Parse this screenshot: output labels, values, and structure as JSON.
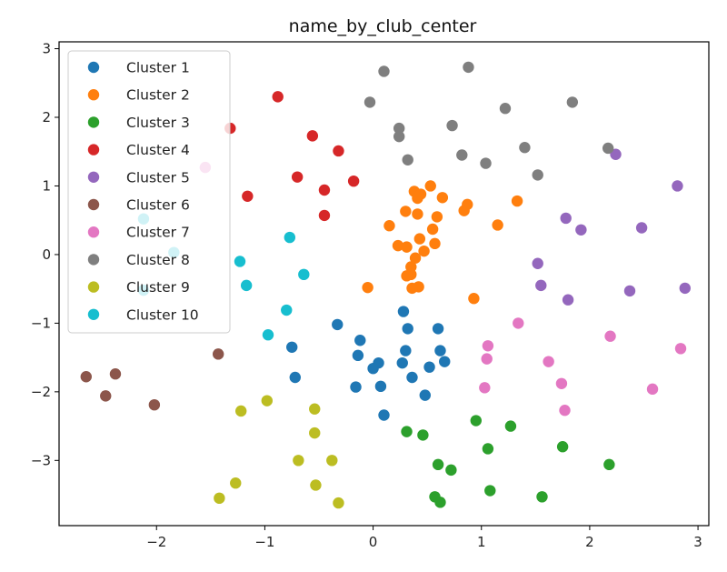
{
  "chart_data": {
    "type": "scatter",
    "title": "name_by_club_center",
    "xlabel": "",
    "ylabel": "",
    "xlim": [
      -2.9,
      3.1
    ],
    "ylim": [
      -3.95,
      3.1
    ],
    "xticks": [
      -2,
      -1,
      0,
      1,
      2,
      3
    ],
    "xtick_labels": [
      "−2",
      "−1",
      "0",
      "1",
      "2",
      "3"
    ],
    "yticks": [
      -3,
      -2,
      -1,
      0,
      1,
      2,
      3
    ],
    "ytick_labels": [
      "−3",
      "−2",
      "−1",
      "0",
      "1",
      "2",
      "3"
    ],
    "grid": false,
    "legend_position": "upper-left",
    "series": [
      {
        "name": "Cluster 1",
        "color": "#1f77b4",
        "points": [
          [
            -0.33,
            -1.02
          ],
          [
            0.28,
            -0.83
          ],
          [
            -0.75,
            -1.35
          ],
          [
            -0.12,
            -1.25
          ],
          [
            0.32,
            -1.08
          ],
          [
            0.6,
            -1.08
          ],
          [
            0.62,
            -1.4
          ],
          [
            0.3,
            -1.4
          ],
          [
            -0.14,
            -1.47
          ],
          [
            0.05,
            -1.58
          ],
          [
            0.27,
            -1.58
          ],
          [
            0.66,
            -1.56
          ],
          [
            -0.72,
            -1.79
          ],
          [
            0.36,
            -1.79
          ],
          [
            0.0,
            -1.66
          ],
          [
            0.52,
            -1.64
          ],
          [
            -0.16,
            -1.93
          ],
          [
            0.07,
            -1.92
          ],
          [
            0.48,
            -2.05
          ],
          [
            0.1,
            -2.34
          ]
        ]
      },
      {
        "name": "Cluster 2",
        "color": "#ff7f0e",
        "points": [
          [
            0.53,
            1.0
          ],
          [
            0.38,
            0.92
          ],
          [
            0.44,
            0.88
          ],
          [
            0.41,
            0.82
          ],
          [
            0.64,
            0.83
          ],
          [
            0.87,
            0.73
          ],
          [
            1.33,
            0.78
          ],
          [
            0.84,
            0.64
          ],
          [
            0.3,
            0.63
          ],
          [
            0.41,
            0.59
          ],
          [
            0.59,
            0.55
          ],
          [
            0.15,
            0.42
          ],
          [
            1.15,
            0.43
          ],
          [
            0.55,
            0.37
          ],
          [
            0.43,
            0.23
          ],
          [
            0.57,
            0.16
          ],
          [
            0.23,
            0.13
          ],
          [
            0.31,
            0.11
          ],
          [
            0.47,
            0.05
          ],
          [
            0.39,
            -0.05
          ],
          [
            0.35,
            -0.18
          ],
          [
            0.35,
            -0.29
          ],
          [
            0.31,
            -0.31
          ],
          [
            0.42,
            -0.47
          ],
          [
            0.36,
            -0.49
          ],
          [
            -0.05,
            -0.48
          ],
          [
            0.93,
            -0.64
          ]
        ]
      },
      {
        "name": "Cluster 3",
        "color": "#2ca02c",
        "points": [
          [
            0.31,
            -2.58
          ],
          [
            0.46,
            -2.63
          ],
          [
            0.95,
            -2.42
          ],
          [
            1.27,
            -2.5
          ],
          [
            1.06,
            -2.83
          ],
          [
            1.75,
            -2.8
          ],
          [
            0.6,
            -3.06
          ],
          [
            0.72,
            -3.14
          ],
          [
            2.18,
            -3.06
          ],
          [
            0.57,
            -3.53
          ],
          [
            0.62,
            -3.61
          ],
          [
            1.08,
            -3.44
          ],
          [
            1.56,
            -3.53
          ]
        ]
      },
      {
        "name": "Cluster 4",
        "color": "#d62728",
        "points": [
          [
            -0.88,
            2.3
          ],
          [
            -1.32,
            1.84
          ],
          [
            -0.56,
            1.73
          ],
          [
            -0.32,
            1.51
          ],
          [
            -0.7,
            1.13
          ],
          [
            -0.18,
            1.07
          ],
          [
            -0.45,
            0.94
          ],
          [
            -1.16,
            0.85
          ],
          [
            -0.45,
            0.57
          ]
        ]
      },
      {
        "name": "Cluster 5",
        "color": "#9467bd",
        "points": [
          [
            2.24,
            1.46
          ],
          [
            2.81,
            1.0
          ],
          [
            1.78,
            0.53
          ],
          [
            1.92,
            0.36
          ],
          [
            2.48,
            0.39
          ],
          [
            1.52,
            -0.13
          ],
          [
            1.55,
            -0.45
          ],
          [
            2.37,
            -0.53
          ],
          [
            2.88,
            -0.49
          ],
          [
            1.8,
            -0.66
          ]
        ]
      },
      {
        "name": "Cluster 6",
        "color": "#8c564b",
        "points": [
          [
            -1.43,
            -1.45
          ],
          [
            -2.65,
            -1.78
          ],
          [
            -2.38,
            -1.74
          ],
          [
            -2.47,
            -2.06
          ],
          [
            -2.02,
            -2.19
          ]
        ]
      },
      {
        "name": "Cluster 7",
        "color": "#e377c2",
        "points": [
          [
            1.34,
            -1.0
          ],
          [
            2.19,
            -1.19
          ],
          [
            2.84,
            -1.37
          ],
          [
            1.06,
            -1.33
          ],
          [
            1.05,
            -1.52
          ],
          [
            1.62,
            -1.56
          ],
          [
            1.74,
            -1.88
          ],
          [
            2.58,
            -1.96
          ],
          [
            1.03,
            -1.94
          ],
          [
            1.77,
            -2.27
          ],
          [
            -1.55,
            1.27
          ]
        ]
      },
      {
        "name": "Cluster 8",
        "color": "#7f7f7f",
        "points": [
          [
            0.1,
            2.67
          ],
          [
            0.88,
            2.73
          ],
          [
            -0.03,
            2.22
          ],
          [
            1.22,
            2.13
          ],
          [
            1.84,
            2.22
          ],
          [
            0.24,
            1.84
          ],
          [
            0.24,
            1.72
          ],
          [
            0.73,
            1.88
          ],
          [
            1.4,
            1.56
          ],
          [
            2.17,
            1.55
          ],
          [
            0.82,
            1.45
          ],
          [
            0.32,
            1.38
          ],
          [
            1.04,
            1.33
          ],
          [
            1.52,
            1.16
          ]
        ]
      },
      {
        "name": "Cluster 9",
        "color": "#bcbd22",
        "points": [
          [
            -0.98,
            -2.13
          ],
          [
            -1.22,
            -2.28
          ],
          [
            -0.54,
            -2.25
          ],
          [
            -0.54,
            -2.6
          ],
          [
            -0.69,
            -3.0
          ],
          [
            -0.38,
            -3.0
          ],
          [
            -1.27,
            -3.33
          ],
          [
            -0.53,
            -3.36
          ],
          [
            -1.42,
            -3.55
          ],
          [
            -0.32,
            -3.62
          ]
        ]
      },
      {
        "name": "Cluster 10",
        "color": "#17becf",
        "points": [
          [
            -2.12,
            0.52
          ],
          [
            -1.84,
            0.03
          ],
          [
            -0.77,
            0.25
          ],
          [
            -1.23,
            -0.1
          ],
          [
            -0.64,
            -0.29
          ],
          [
            -1.17,
            -0.45
          ],
          [
            -2.12,
            -0.52
          ],
          [
            -0.8,
            -0.81
          ],
          [
            -0.97,
            -1.17
          ]
        ]
      }
    ]
  }
}
